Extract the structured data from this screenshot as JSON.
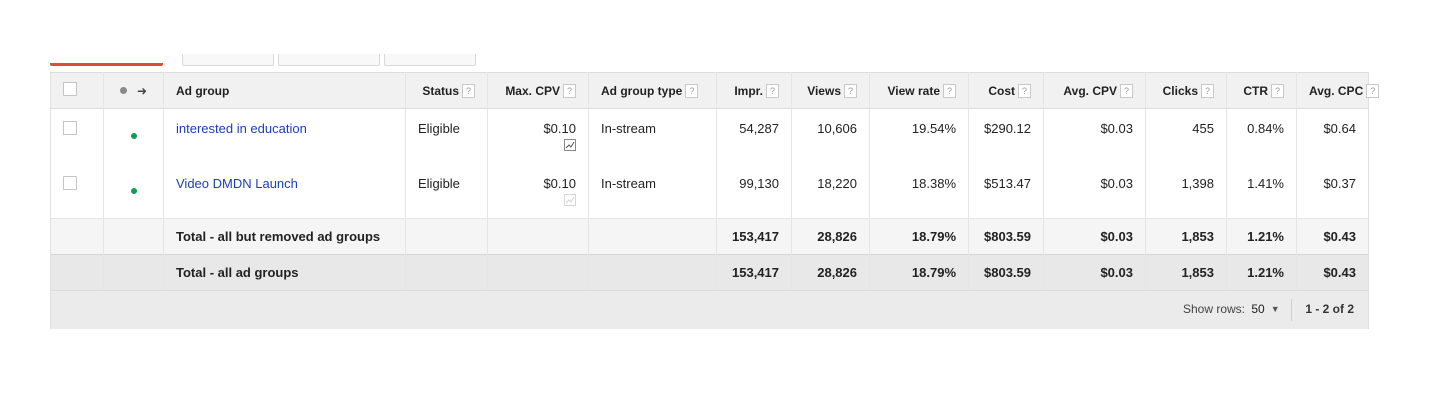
{
  "columns": {
    "ad_group": "Ad group",
    "status": "Status",
    "max_cpv": "Max. CPV",
    "ad_group_type": "Ad group type",
    "impr": "Impr.",
    "views": "Views",
    "view_rate": "View rate",
    "cost": "Cost",
    "avg_cpv": "Avg. CPV",
    "clicks": "Clicks",
    "ctr": "CTR",
    "avg_cpc": "Avg. CPC",
    "help_glyph": "?"
  },
  "rows": [
    {
      "ad_group": "interested in education",
      "status": "Eligible",
      "max_cpv": "$0.10",
      "ad_group_type": "In-stream",
      "impr": "54,287",
      "views": "10,606",
      "view_rate": "19.54%",
      "cost": "$290.12",
      "avg_cpv": "$0.03",
      "clicks": "455",
      "ctr": "0.84%",
      "avg_cpc": "$0.64"
    },
    {
      "ad_group": "Video DMDN Launch",
      "status": "Eligible",
      "max_cpv": "$0.10",
      "ad_group_type": "In-stream",
      "impr": "99,130",
      "views": "18,220",
      "view_rate": "18.38%",
      "cost": "$513.47",
      "avg_cpv": "$0.03",
      "clicks": "1,398",
      "ctr": "1.41%",
      "avg_cpc": "$0.37"
    }
  ],
  "totals": [
    {
      "label": "Total - all but removed ad groups",
      "impr": "153,417",
      "views": "28,826",
      "view_rate": "18.79%",
      "cost": "$803.59",
      "avg_cpv": "$0.03",
      "clicks": "1,853",
      "ctr": "1.21%",
      "avg_cpc": "$0.43"
    },
    {
      "label": "Total - all ad groups",
      "impr": "153,417",
      "views": "28,826",
      "view_rate": "18.79%",
      "cost": "$803.59",
      "avg_cpv": "$0.03",
      "clicks": "1,853",
      "ctr": "1.21%",
      "avg_cpc": "$0.43"
    }
  ],
  "footer": {
    "show_rows_label": "Show rows:",
    "show_rows_value": "50",
    "pager": "1 - 2 of 2"
  },
  "colors": {
    "status_dot": "#0f9d58",
    "link": "#1a3fb8",
    "accent": "#dd4b39"
  }
}
